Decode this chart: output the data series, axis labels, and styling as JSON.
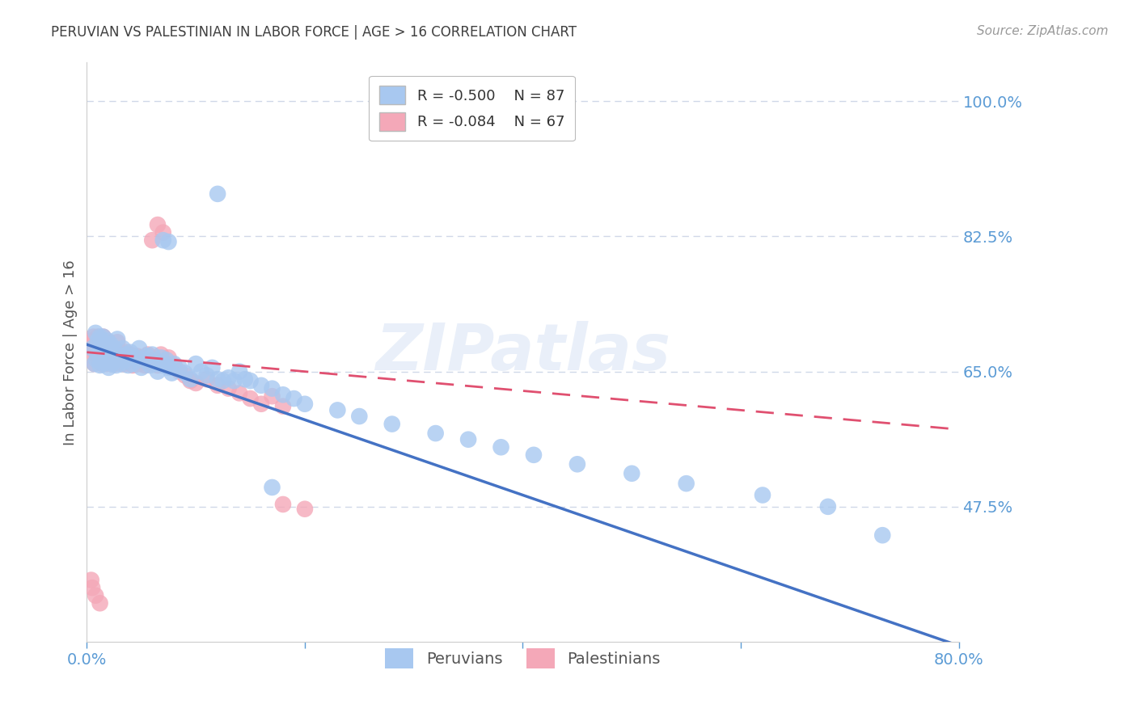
{
  "title": "PERUVIAN VS PALESTINIAN IN LABOR FORCE | AGE > 16 CORRELATION CHART",
  "source": "Source: ZipAtlas.com",
  "ylabel": "In Labor Force | Age > 16",
  "xlim": [
    0.0,
    0.8
  ],
  "ylim": [
    0.3,
    1.05
  ],
  "yticks_right": [
    1.0,
    0.825,
    0.65,
    0.475
  ],
  "yticklabels_right": [
    "100.0%",
    "82.5%",
    "65.0%",
    "47.5%"
  ],
  "legend_blue_R": "R = -0.500",
  "legend_blue_N": "N = 87",
  "legend_pink_R": "R = -0.084",
  "legend_pink_N": "N = 67",
  "blue_color": "#A8C8F0",
  "pink_color": "#F4A8B8",
  "blue_line_color": "#4472C4",
  "pink_line_color": "#E05070",
  "title_color": "#404040",
  "source_color": "#999999",
  "axis_label_color": "#5B9BD5",
  "grid_color": "#D0D8E8",
  "background_color": "#FFFFFF",
  "blue_line_x0": 0.0,
  "blue_line_y0": 0.685,
  "blue_line_x1": 0.8,
  "blue_line_y1": 0.295,
  "pink_line_x0": 0.0,
  "pink_line_y0": 0.675,
  "pink_line_x1": 0.8,
  "pink_line_y1": 0.575,
  "peruvians_x": [
    0.005,
    0.007,
    0.008,
    0.009,
    0.01,
    0.01,
    0.011,
    0.012,
    0.012,
    0.013,
    0.014,
    0.015,
    0.015,
    0.015,
    0.016,
    0.017,
    0.018,
    0.019,
    0.02,
    0.02,
    0.021,
    0.022,
    0.023,
    0.024,
    0.025,
    0.026,
    0.027,
    0.028,
    0.03,
    0.031,
    0.033,
    0.035,
    0.036,
    0.038,
    0.04,
    0.042,
    0.045,
    0.048,
    0.05,
    0.052,
    0.055,
    0.058,
    0.06,
    0.063,
    0.065,
    0.068,
    0.07,
    0.073,
    0.075,
    0.078,
    0.08,
    0.085,
    0.09,
    0.095,
    0.1,
    0.105,
    0.11,
    0.115,
    0.12,
    0.125,
    0.13,
    0.135,
    0.14,
    0.145,
    0.15,
    0.16,
    0.17,
    0.18,
    0.19,
    0.2,
    0.12,
    0.07,
    0.075,
    0.23,
    0.25,
    0.28,
    0.32,
    0.35,
    0.38,
    0.41,
    0.45,
    0.5,
    0.55,
    0.62,
    0.68,
    0.73,
    0.17
  ],
  "peruvians_y": [
    0.68,
    0.66,
    0.7,
    0.665,
    0.675,
    0.69,
    0.672,
    0.658,
    0.695,
    0.67,
    0.685,
    0.66,
    0.678,
    0.695,
    0.665,
    0.68,
    0.672,
    0.69,
    0.655,
    0.668,
    0.675,
    0.685,
    0.66,
    0.672,
    0.68,
    0.665,
    0.658,
    0.692,
    0.67,
    0.66,
    0.68,
    0.665,
    0.672,
    0.658,
    0.675,
    0.66,
    0.668,
    0.68,
    0.655,
    0.665,
    0.67,
    0.658,
    0.672,
    0.66,
    0.65,
    0.668,
    0.658,
    0.665,
    0.655,
    0.648,
    0.66,
    0.655,
    0.648,
    0.64,
    0.66,
    0.65,
    0.645,
    0.655,
    0.64,
    0.638,
    0.642,
    0.638,
    0.65,
    0.64,
    0.638,
    0.632,
    0.628,
    0.62,
    0.615,
    0.608,
    0.88,
    0.82,
    0.818,
    0.6,
    0.592,
    0.582,
    0.57,
    0.562,
    0.552,
    0.542,
    0.53,
    0.518,
    0.505,
    0.49,
    0.475,
    0.438,
    0.5
  ],
  "palestinians_x": [
    0.004,
    0.005,
    0.006,
    0.007,
    0.008,
    0.009,
    0.01,
    0.01,
    0.011,
    0.012,
    0.013,
    0.014,
    0.015,
    0.015,
    0.016,
    0.017,
    0.018,
    0.019,
    0.02,
    0.021,
    0.022,
    0.023,
    0.025,
    0.026,
    0.027,
    0.028,
    0.03,
    0.032,
    0.034,
    0.036,
    0.038,
    0.04,
    0.042,
    0.044,
    0.046,
    0.048,
    0.05,
    0.053,
    0.056,
    0.059,
    0.062,
    0.065,
    0.068,
    0.072,
    0.075,
    0.08,
    0.085,
    0.09,
    0.095,
    0.1,
    0.11,
    0.12,
    0.13,
    0.14,
    0.15,
    0.16,
    0.17,
    0.18,
    0.06,
    0.065,
    0.07,
    0.004,
    0.005,
    0.008,
    0.012,
    0.18,
    0.2
  ],
  "palestinians_y": [
    0.69,
    0.675,
    0.695,
    0.66,
    0.68,
    0.67,
    0.685,
    0.695,
    0.665,
    0.678,
    0.688,
    0.66,
    0.672,
    0.695,
    0.668,
    0.682,
    0.66,
    0.678,
    0.688,
    0.665,
    0.672,
    0.68,
    0.668,
    0.66,
    0.675,
    0.688,
    0.665,
    0.67,
    0.66,
    0.675,
    0.668,
    0.672,
    0.658,
    0.665,
    0.67,
    0.66,
    0.668,
    0.658,
    0.672,
    0.66,
    0.665,
    0.658,
    0.672,
    0.66,
    0.668,
    0.658,
    0.65,
    0.645,
    0.638,
    0.635,
    0.64,
    0.632,
    0.628,
    0.622,
    0.615,
    0.608,
    0.618,
    0.605,
    0.82,
    0.84,
    0.83,
    0.38,
    0.37,
    0.36,
    0.35,
    0.478,
    0.472
  ]
}
